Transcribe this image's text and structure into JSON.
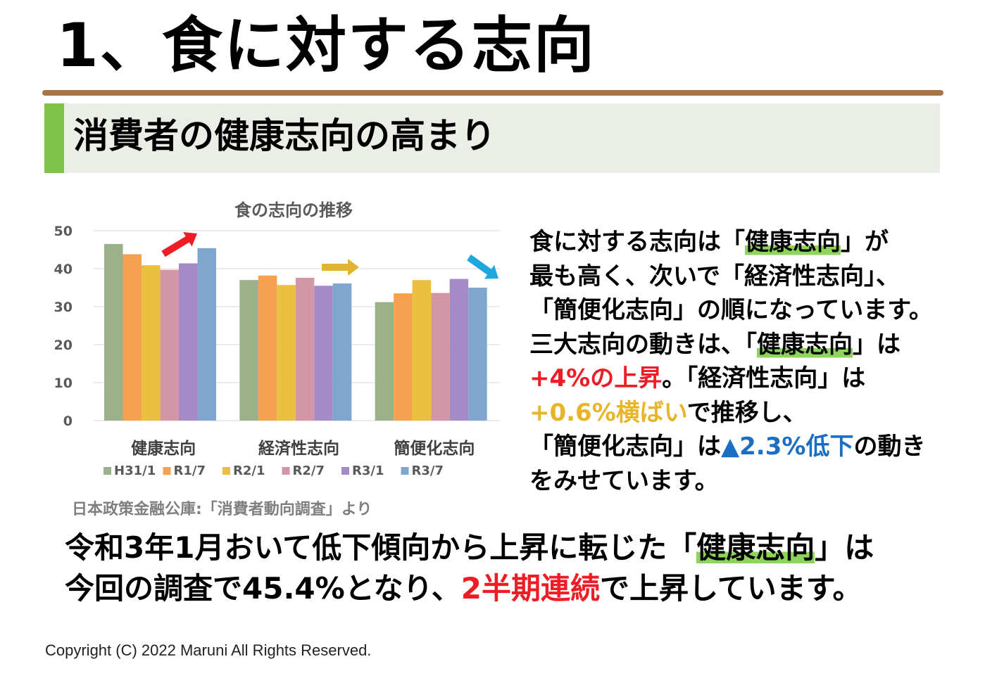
{
  "title": "1、食に対する志向",
  "subtitle": "消費者の健康志向の高まり",
  "chart_data": {
    "type": "bar",
    "title": "食の志向の推移",
    "categories": [
      "健康志向",
      "経済性志向",
      "簡便化志向"
    ],
    "series": [
      {
        "name": "H31/1",
        "color": "#9bb18a",
        "values": [
          46.5,
          37.0,
          31.2
        ]
      },
      {
        "name": "R1/7",
        "color": "#f4a24f",
        "values": [
          43.8,
          38.2,
          33.5
        ]
      },
      {
        "name": "R2/1",
        "color": "#ebc03f",
        "values": [
          40.9,
          35.7,
          37.0
        ]
      },
      {
        "name": "R2/7",
        "color": "#d396a6",
        "values": [
          39.7,
          37.6,
          33.6
        ]
      },
      {
        "name": "R3/1",
        "color": "#a48bc7",
        "values": [
          41.4,
          35.5,
          37.3
        ]
      },
      {
        "name": "R3/7",
        "color": "#7ea6cf",
        "values": [
          45.4,
          36.1,
          35.0
        ]
      }
    ],
    "ylim": [
      0,
      50
    ],
    "yticks": [
      "0",
      "10",
      "20",
      "30",
      "40",
      "50"
    ],
    "grid": true,
    "legend": "bottom",
    "arrows": [
      {
        "name": "up-arrow",
        "color": "#ee1c24"
      },
      {
        "name": "right-arrow",
        "color": "#e2b232"
      },
      {
        "name": "down-arrow",
        "color": "#1ea8e0"
      }
    ]
  },
  "source": "日本政策金融公庫:「消費者動向調査」より",
  "desc": {
    "l1a": "食に対する志向は「",
    "l1b": "健康志向",
    "l1c": "」が",
    "l2": "最も高く、次いで「経済性志向」、",
    "l3": "「簡便化志向」の順になっています。",
    "l4a": "三大志向の動きは、「",
    "l4b": "健康志向",
    "l4c": "」は",
    "l5a": "+4%の上昇",
    "l5b": "。「経済性志向」は",
    "l6a": "+0.6%横ばい",
    "l6b": "で推移し、",
    "l7a": "「簡便化志向」は",
    "l7b": "▲2.3%低下",
    "l7c": "の動き",
    "l8": "をみせています。"
  },
  "bottom": {
    "l1a": "令和3年1月おいて低下傾向から上昇に転じた「",
    "l1b": "健康志向",
    "l1c": "」は",
    "l2a": "今回の調査で45.4%となり、",
    "l2b": "2半期連続",
    "l2c": "で上昇しています。"
  },
  "copyright": "Copyright (C) 2022 Maruni All Rights Reserved."
}
